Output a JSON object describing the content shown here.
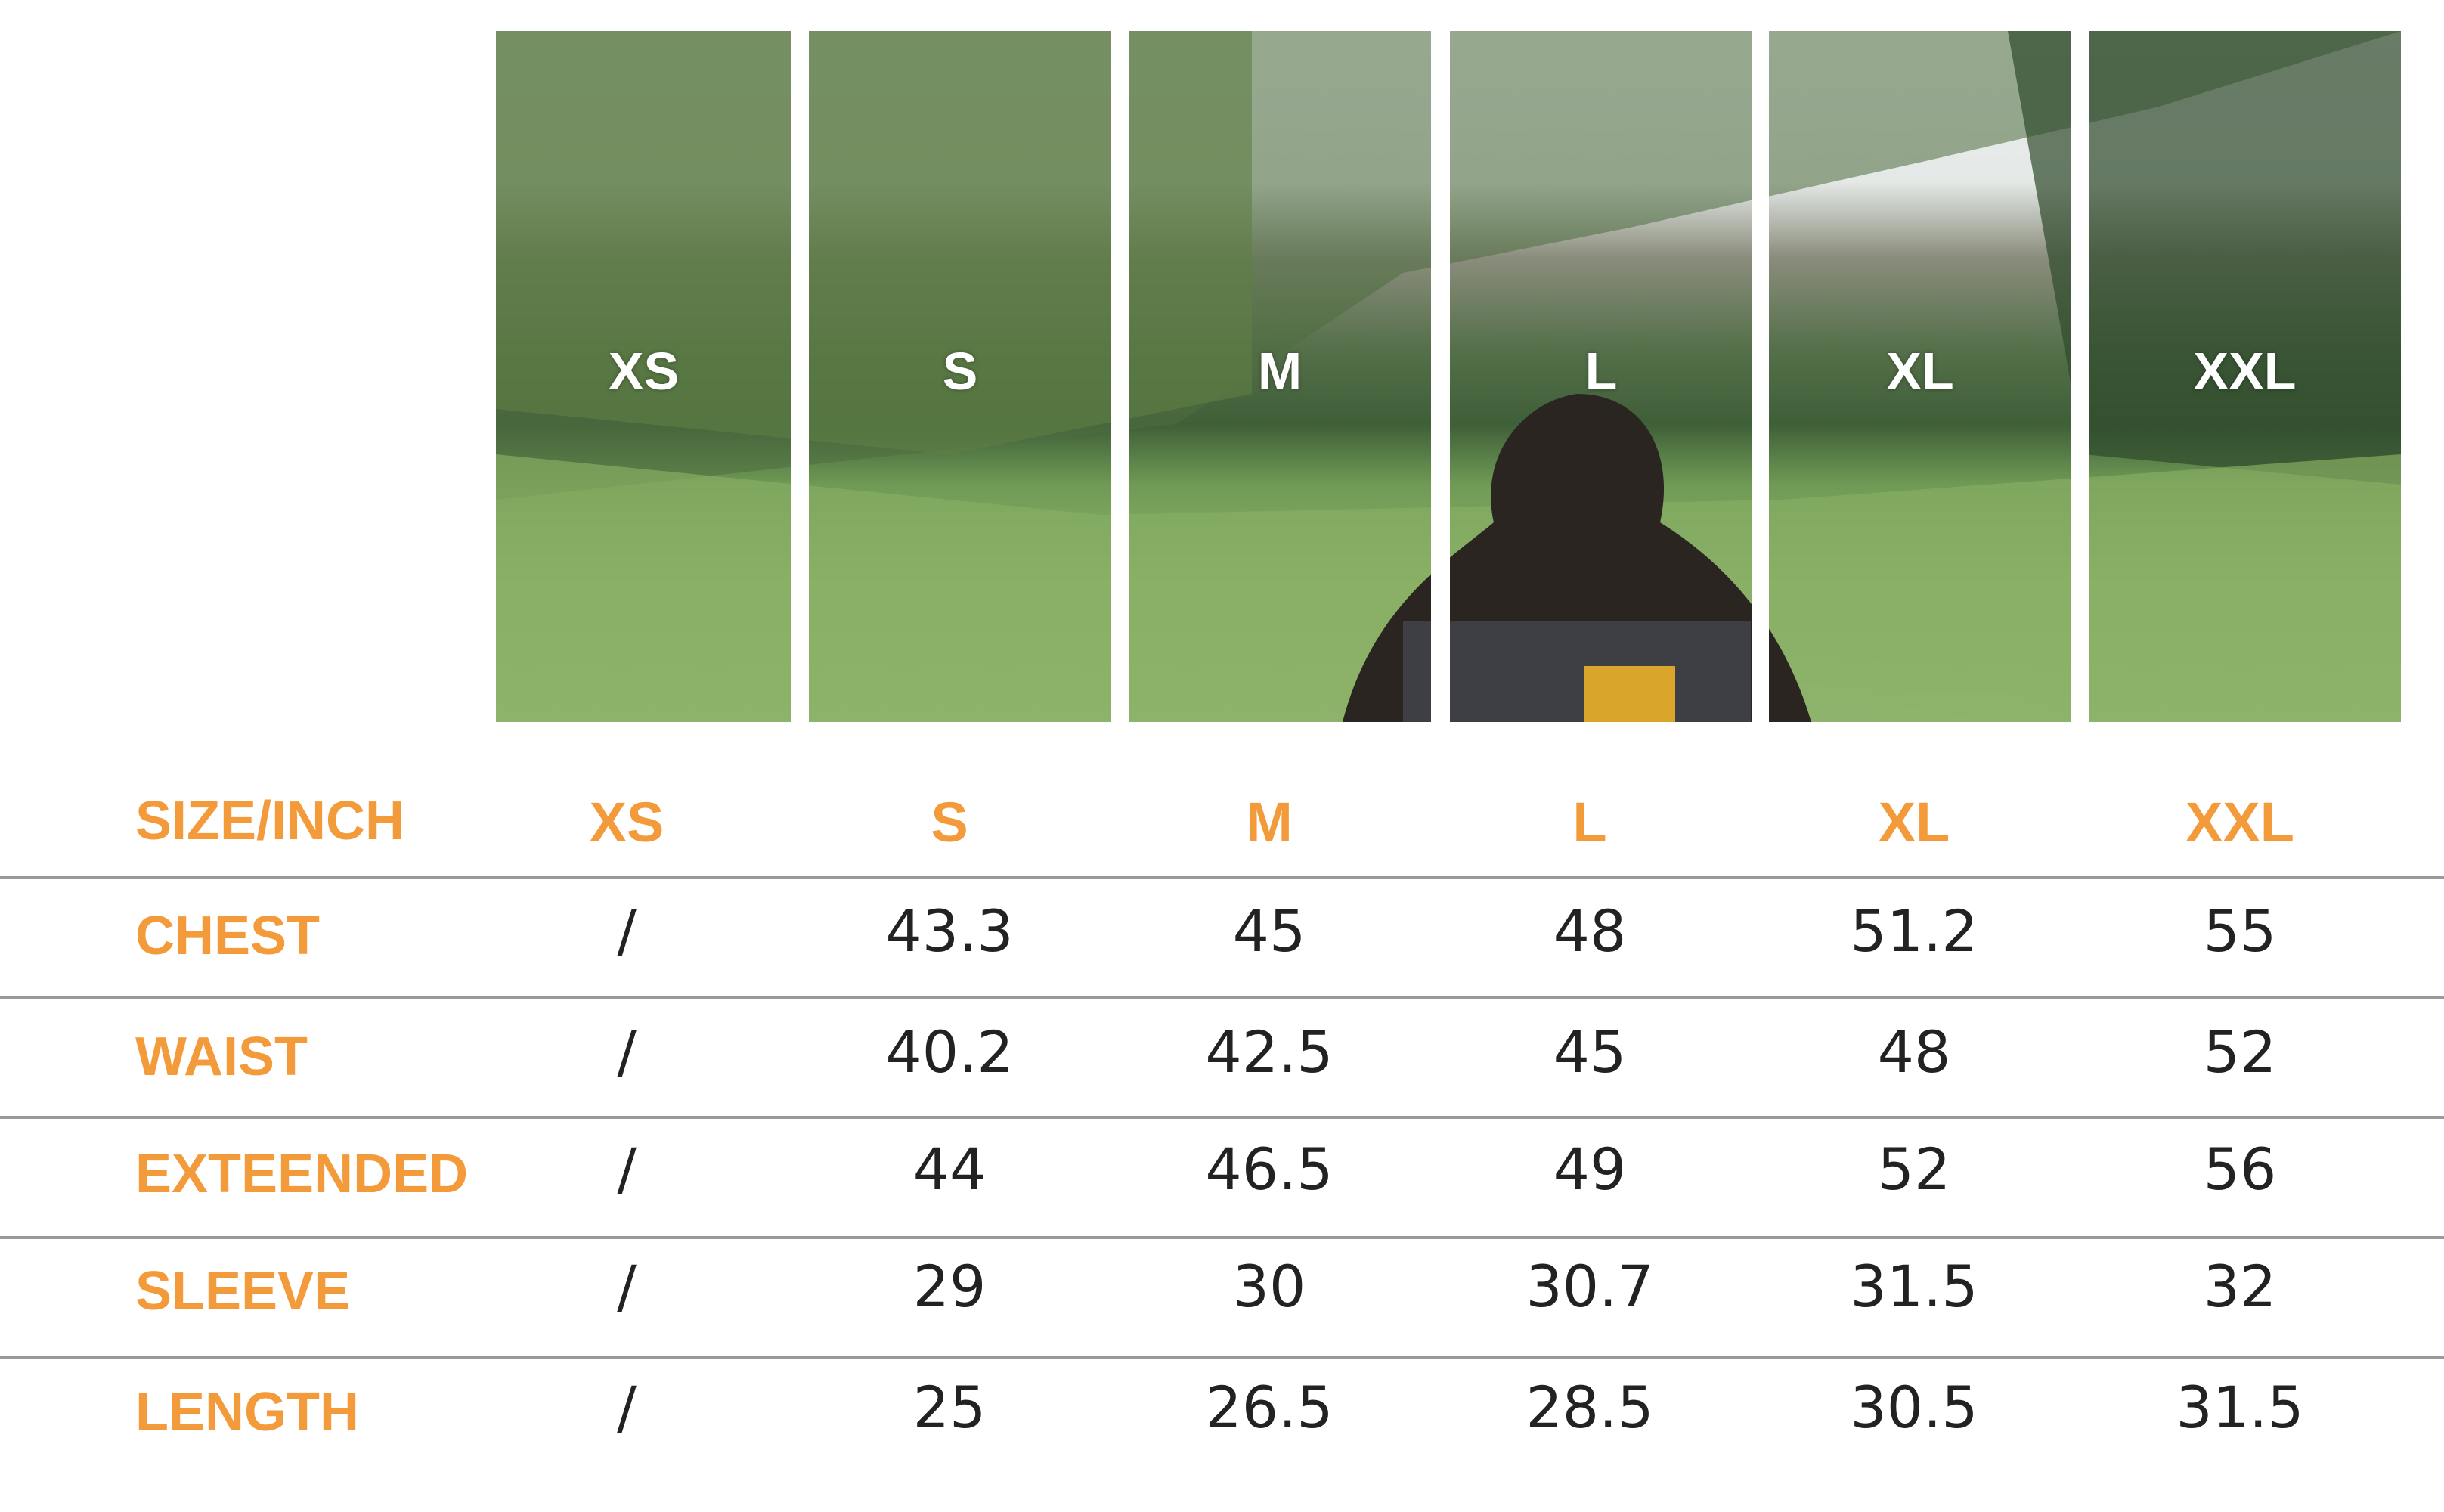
{
  "sizes": [
    "XS",
    "S",
    "M",
    "L",
    "XL",
    "XXL"
  ],
  "table": {
    "corner_label": "SIZE/INCH",
    "rows": [
      {
        "label": "CHEST",
        "values": [
          "/",
          "43.3",
          "45",
          "48",
          "51.2",
          "55"
        ]
      },
      {
        "label": "WAIST",
        "values": [
          "/",
          "40.2",
          "42.5",
          "45",
          "48",
          "52"
        ]
      },
      {
        "label": "EXTEENDED",
        "values": [
          "/",
          "44",
          "46.5",
          "49",
          "52",
          "56"
        ]
      },
      {
        "label": "SLEEVE",
        "values": [
          "/",
          "29",
          "30",
          "30.7",
          "31.5",
          "32"
        ]
      },
      {
        "label": "LENGTH",
        "values": [
          "/",
          "25",
          "26.5",
          "28.5",
          "30.5",
          "31.5"
        ]
      }
    ]
  },
  "colors": {
    "accent": "#f39a3a",
    "text": "#222222",
    "divider": "#9a9a9a"
  }
}
